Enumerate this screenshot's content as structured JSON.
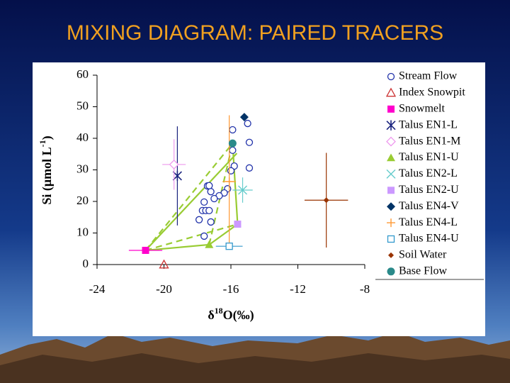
{
  "slide_title": "MIXING DIAGRAM: PAIRED TRACERS",
  "chart_data": {
    "type": "scatter",
    "y_label": [
      "Si (",
      "μ",
      "mol L",
      "-1",
      ")"
    ],
    "x_label": [
      "δ",
      "18",
      "O(‰)"
    ],
    "xlim": [
      -24,
      -8
    ],
    "xticks": [
      -24,
      -20,
      -16,
      -12,
      -8
    ],
    "ylim": [
      0,
      60
    ],
    "yticks": [
      0,
      10,
      20,
      30,
      40,
      50,
      60
    ],
    "legend": "right",
    "series": [
      {
        "name": "Stream Flow",
        "color": "#2233aa",
        "marker": "circle-open",
        "x": [
          -15.0,
          -14.9,
          -14.9,
          -15.9,
          -15.9,
          -15.8,
          -16.0,
          -16.2,
          -16.4,
          -16.7,
          -17.0,
          -17.2,
          -17.4,
          -17.3,
          -17.6,
          -17.7,
          -17.5,
          -17.3,
          -17.9,
          -17.2,
          -17.6
        ],
        "values": [
          44.7,
          38.7,
          30.6,
          42.7,
          36.2,
          31.2,
          29.7,
          24.0,
          22.7,
          21.8,
          20.9,
          23.1,
          24.9,
          25.0,
          19.8,
          17.1,
          17.1,
          17.1,
          14.2,
          13.5,
          9.0
        ]
      },
      {
        "name": "Index Snowpit",
        "color": "#cc3333",
        "marker": "triangle-open",
        "x": [
          -20.0
        ],
        "values": [
          0
        ]
      },
      {
        "name": "Snowmelt",
        "color": "#ff00cc",
        "marker": "square",
        "x": [
          -21.1
        ],
        "values": [
          4.5
        ],
        "xerr": [
          1.0
        ]
      },
      {
        "name": "Talus EN1-L",
        "color": "#1a237e",
        "marker": "asterisk",
        "x": [
          -19.2
        ],
        "values": [
          28.1
        ],
        "yerr": [
          15.7
        ]
      },
      {
        "name": "Talus EN1-M",
        "color": "#ee99ee",
        "marker": "diamond-open",
        "x": [
          -19.4
        ],
        "values": [
          31.7
        ],
        "yerr": [
          8.0
        ],
        "xerr": [
          0.7
        ]
      },
      {
        "name": "Talus EN1-U",
        "color": "#99cc33",
        "marker": "triangle",
        "x": [
          -17.3
        ],
        "values": [
          6.3
        ]
      },
      {
        "name": "Talus EN2-L",
        "color": "#66cccc",
        "marker": "x",
        "x": [
          -15.3
        ],
        "values": [
          23.6
        ],
        "yerr": [
          4.0
        ],
        "xerr": [
          0.6
        ]
      },
      {
        "name": "Talus EN2-U",
        "color": "#cc99ff",
        "marker": "square",
        "x": [
          -15.6
        ],
        "values": [
          12.8
        ]
      },
      {
        "name": "Talus EN4-V",
        "color": "#003366",
        "marker": "diamond",
        "x": [
          -15.2
        ],
        "values": [
          46.7
        ]
      },
      {
        "name": "Talus EN4-L",
        "color": "#ff9933",
        "marker": "plus",
        "x": [
          -16.1
        ],
        "values": [
          26.3
        ],
        "yerr": [
          21.0
        ],
        "xerr": [
          0.4
        ]
      },
      {
        "name": "Talus EN4-U",
        "color": "#3399cc",
        "marker": "square-open",
        "x": [
          -16.1
        ],
        "values": [
          5.8
        ],
        "xerr": [
          0.8
        ]
      },
      {
        "name": "Soil Water",
        "color": "#993300",
        "marker": "diamond-small",
        "x": [
          -10.3
        ],
        "values": [
          20.4
        ],
        "yerr": [
          15.0
        ],
        "xerr": [
          1.3
        ]
      },
      {
        "name": "Base Flow",
        "color": "#2a8a8a",
        "marker": "circle",
        "x": [
          -15.9
        ],
        "values": [
          38.4
        ]
      }
    ]
  }
}
